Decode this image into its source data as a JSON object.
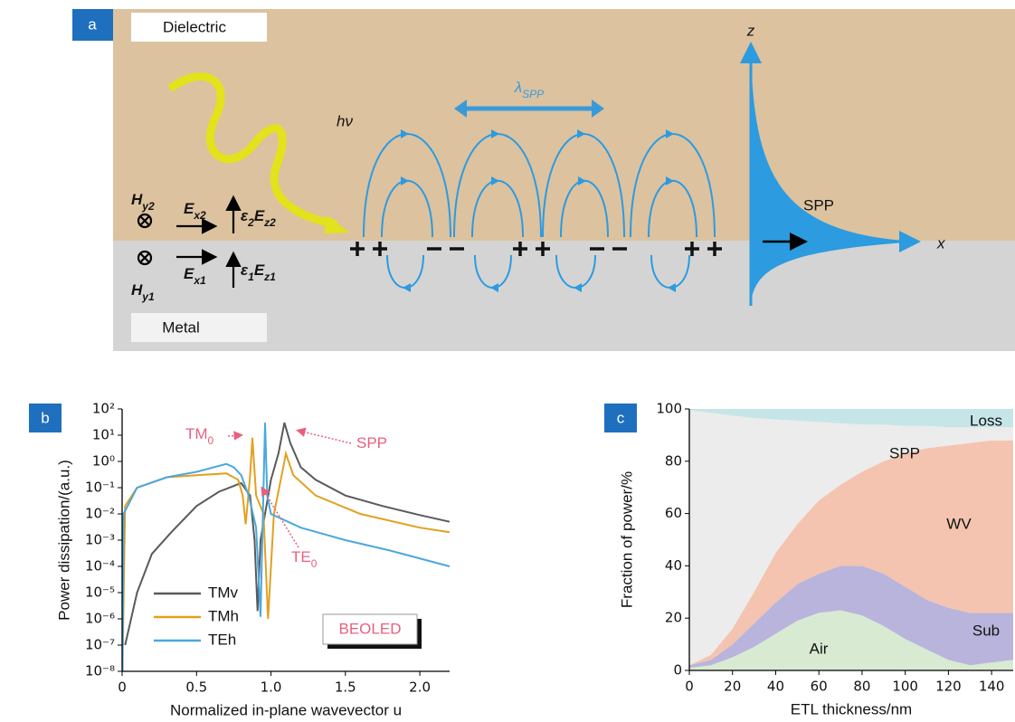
{
  "diagram": {
    "panel_label": "a",
    "dielectric": "Dielectric",
    "metal": "Metal",
    "photon": "hν",
    "wavelength": [
      "λ",
      "SPP"
    ],
    "spp": "SPP",
    "z_axis": "z",
    "x_axis": "x",
    "fields": {
      "hy2": [
        "H",
        "y2"
      ],
      "ex2": [
        "E",
        "x2"
      ],
      "ez2": [
        "ε",
        "2",
        "E",
        "z2"
      ],
      "hy1": [
        "H",
        "y1"
      ],
      "ex1": [
        "E",
        "x1"
      ],
      "ez1": [
        "ε",
        "1",
        "E",
        "z1"
      ]
    }
  },
  "chart_data": [
    {
      "type": "line",
      "panel_label": "b",
      "log_y": true,
      "xlabel": "Normalized in-plane wavevector u",
      "ylabel": "Power dissipation/(a.u.)",
      "xlim": [
        0,
        2.2
      ],
      "xticks": [
        0,
        0.5,
        {
          "value": 1,
          "label": "1.0"
        },
        1.5,
        {
          "value": 2,
          "label": "2.0"
        }
      ],
      "ylim": [
        1e-08,
        100
      ],
      "yticks": [
        {
          "value": 1e-08,
          "label": "10⁻⁸"
        },
        {
          "value": 1e-07,
          "label": "10⁻⁷"
        },
        {
          "value": 1e-06,
          "label": "10⁻⁶"
        },
        {
          "value": 1e-05,
          "label": "10⁻⁵"
        },
        {
          "value": 0.0001,
          "label": "10⁻⁴"
        },
        {
          "value": 0.001,
          "label": "10⁻³"
        },
        {
          "value": 0.01,
          "label": "10⁻²"
        },
        {
          "value": 0.1,
          "label": "10⁻¹"
        },
        {
          "value": 1,
          "label": "10⁰"
        },
        {
          "value": 10,
          "label": "10¹"
        },
        {
          "value": 100,
          "label": "10²"
        }
      ],
      "legend": "lower left",
      "series": [
        {
          "name": "TMv",
          "color": "#5a5a5a",
          "x": [
            0.02,
            0.1,
            0.2,
            0.33,
            0.5,
            0.65,
            0.8,
            0.86,
            0.89,
            0.91,
            0.93,
            1.0,
            1.05,
            1.09,
            1.13,
            1.2,
            1.3,
            1.5,
            1.75,
            2.0,
            2.2
          ],
          "values": [
            1e-07,
            1e-05,
            0.0003,
            0.002,
            0.02,
            0.07,
            0.15,
            0.05,
            0.001,
            2e-06,
            0.001,
            0.2,
            2,
            30,
            5,
            0.6,
            0.2,
            0.05,
            0.02,
            0.009,
            0.005
          ]
        },
        {
          "name": "TMh",
          "color": "#e3a020",
          "x": [
            0.005,
            0.02,
            0.1,
            0.3,
            0.5,
            0.7,
            0.78,
            0.81,
            0.83,
            0.86,
            0.875,
            0.9,
            0.95,
            0.98,
            1.02,
            1.08,
            1.1,
            1.15,
            1.3,
            1.6,
            2.0,
            2.2
          ],
          "values": [
            1e-07,
            0.02,
            0.1,
            0.25,
            0.3,
            0.35,
            0.2,
            0.05,
            0.004,
            0.3,
            8,
            0.05,
            0.01,
            1e-06,
            0.01,
            0.5,
            2,
            0.3,
            0.05,
            0.01,
            0.003,
            0.002
          ]
        },
        {
          "name": "TEh",
          "color": "#4aa8de",
          "x": [
            0.003,
            0.01,
            0.1,
            0.3,
            0.5,
            0.7,
            0.75,
            0.8,
            0.85,
            0.9,
            0.93,
            0.95,
            0.96,
            0.975,
            1.0,
            1.2,
            1.5,
            1.8,
            2.2
          ],
          "values": [
            1e-08,
            0.01,
            0.1,
            0.25,
            0.4,
            0.8,
            0.6,
            0.3,
            0.05,
            0.003,
            1.2e-06,
            0.1,
            30,
            0.05,
            0.01,
            0.003,
            0.001,
            0.0004,
            0.0001
          ]
        }
      ],
      "annotations": [
        {
          "text": "TM",
          "sub": "0"
        },
        {
          "text": "SPP"
        },
        {
          "text": "TE",
          "sub": "0"
        }
      ],
      "badge": "BEOLED"
    },
    {
      "type": "area",
      "panel_label": "c",
      "stacked": true,
      "xlabel": "ETL thickness/nm",
      "ylabel": "Fraction of power/%",
      "xlim": [
        0,
        150
      ],
      "xticks": [
        0,
        20,
        40,
        60,
        80,
        100,
        120,
        140
      ],
      "ylim": [
        0,
        100
      ],
      "yticks": [
        0,
        20,
        40,
        60,
        80,
        100
      ],
      "x": [
        0,
        10,
        20,
        30,
        40,
        50,
        60,
        70,
        80,
        90,
        100,
        110,
        120,
        130,
        140,
        150
      ],
      "series": [
        {
          "name": "Air",
          "color": "#d8ead2",
          "values": [
            1,
            2,
            5,
            9,
            14,
            19,
            22,
            23,
            21,
            17,
            12,
            8,
            4,
            2,
            3,
            4
          ]
        },
        {
          "name": "Sub",
          "color": "#b9b4dc",
          "values": [
            1,
            2,
            5,
            9,
            12,
            14,
            15,
            17,
            19,
            20,
            20,
            19,
            20,
            20,
            19,
            18
          ]
        },
        {
          "name": "WV",
          "color": "#f4c4b0",
          "values": [
            0,
            2,
            6,
            12,
            19,
            23,
            28,
            31,
            36,
            43,
            51,
            58,
            62,
            65,
            66,
            66
          ]
        },
        {
          "name": "SPP",
          "color": "#ececec",
          "values": [
            97.5,
            92.5,
            81.5,
            66.5,
            51,
            39.5,
            30,
            23.5,
            18,
            14,
            10.5,
            8.5,
            7,
            6,
            5,
            5
          ]
        },
        {
          "name": "Loss",
          "color": "#c6e5e6",
          "values": [
            0.5,
            1.5,
            2.5,
            3.5,
            4,
            4.5,
            5,
            5.5,
            6,
            6,
            6.5,
            6.5,
            7,
            7,
            7,
            7
          ]
        }
      ]
    }
  ]
}
